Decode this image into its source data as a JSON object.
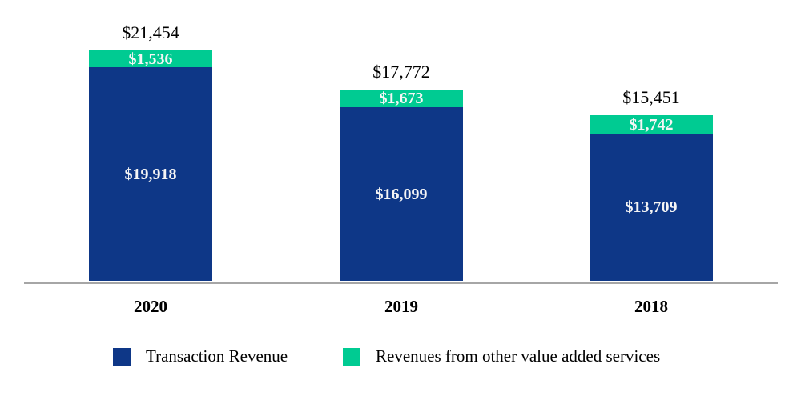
{
  "chart_data": {
    "type": "bar",
    "variant": "stacked",
    "orientation": "vertical",
    "categories": [
      "2020",
      "2019",
      "2018"
    ],
    "series": [
      {
        "name": "Transaction Revenue",
        "color": "#0E3787",
        "values": [
          19918,
          16099,
          13709
        ]
      },
      {
        "name": "Revenues from other value added services",
        "color": "#00CB92",
        "values": [
          1536,
          1673,
          1742
        ]
      }
    ],
    "totals": [
      21454,
      17772,
      15451
    ],
    "bars": [
      {
        "year": "2020",
        "total_label": "$21,454",
        "vas_label": "$1,536",
        "txn_label": "$19,918"
      },
      {
        "year": "2019",
        "total_label": "$17,772",
        "vas_label": "$1,673",
        "txn_label": "$16,099"
      },
      {
        "year": "2018",
        "total_label": "$15,451",
        "vas_label": "$1,742",
        "txn_label": "$13,709"
      }
    ],
    "legend": [
      {
        "label": "Transaction Revenue",
        "color": "#0E3787"
      },
      {
        "label": "Revenues from other value added services",
        "color": "#00CB92"
      }
    ],
    "axis": {
      "baseline_color": "#A6A6A6",
      "gridlines": false
    },
    "background": "#FFFFFF",
    "text_colors": {
      "total": "#000000",
      "segment": "#F5F5F5",
      "year": "#000000"
    }
  }
}
